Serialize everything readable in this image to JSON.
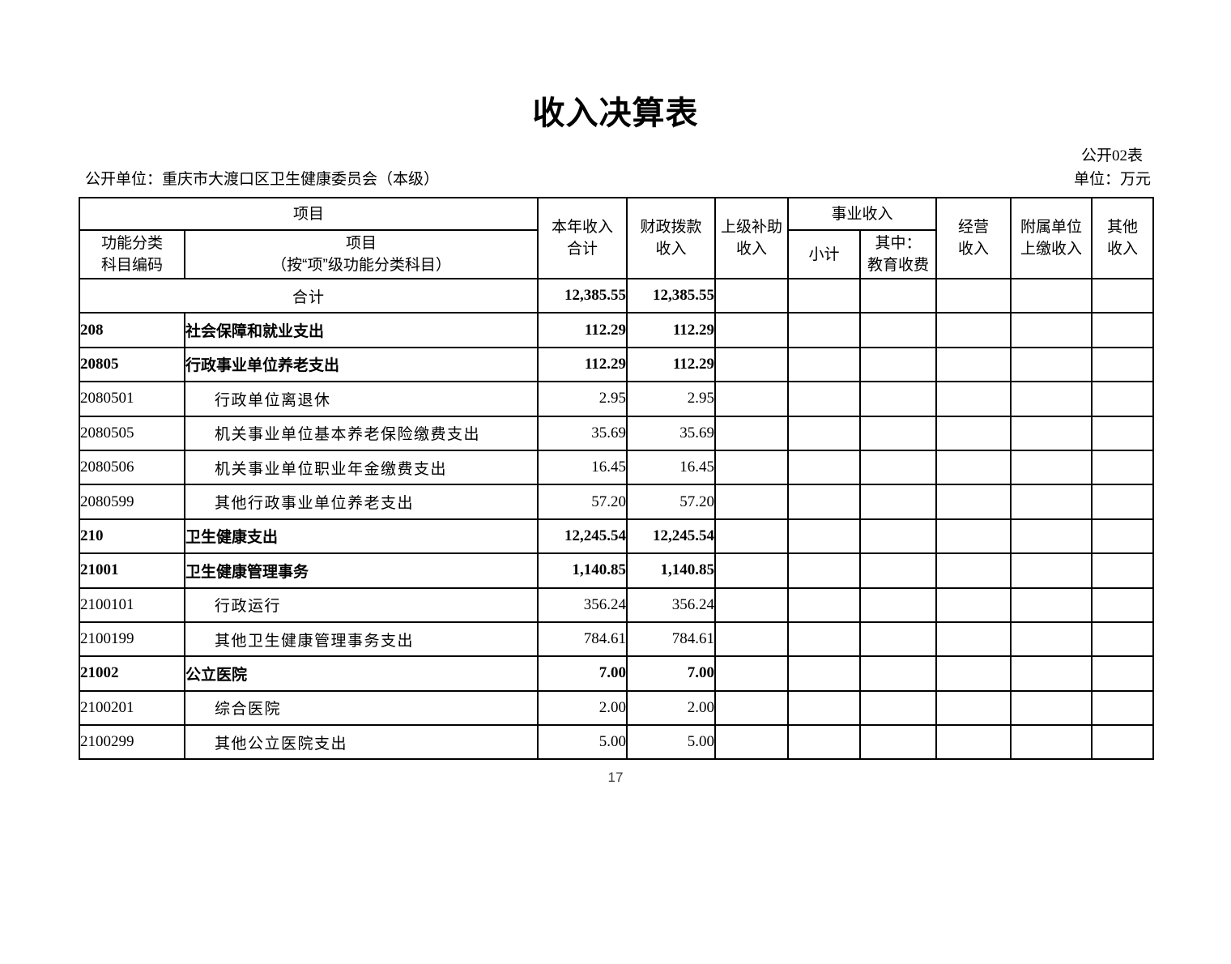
{
  "page": {
    "title": "收入决算表",
    "form_code": "公开02表",
    "publisher": "公开单位：重庆市大渡口区卫生健康委员会（本级）",
    "unit": "单位：万元",
    "page_number": "17"
  },
  "table": {
    "header": {
      "item_group": "项目",
      "code_label": [
        "功能分类",
        "科目编码"
      ],
      "item_label": [
        "项目",
        "（按“项”级功能分类科目）"
      ],
      "total_label": [
        "本年收入",
        "合计"
      ],
      "fiscal_label": [
        "财政拨款",
        "收入"
      ],
      "superior_label": [
        "上级补助",
        "收入"
      ],
      "business_group": "事业收入",
      "business_subtotal": "小计",
      "business_edu": [
        "其中：",
        "教育收费"
      ],
      "operating_label": [
        "经营",
        "收入"
      ],
      "affiliated_label": [
        "附属单位",
        "上缴收入"
      ],
      "other_label": [
        "其他",
        "收入"
      ]
    },
    "rows": [
      {
        "code": "",
        "item": "合计",
        "level": "total",
        "values": [
          "12,385.55",
          "12,385.55",
          "",
          "",
          "",
          "",
          "",
          ""
        ]
      },
      {
        "code": "208",
        "item": "社会保障和就业支出",
        "level": "class",
        "values": [
          "112.29",
          "112.29",
          "",
          "",
          "",
          "",
          "",
          ""
        ]
      },
      {
        "code": "20805",
        "item": "行政事业单位养老支出",
        "level": "class",
        "values": [
          "112.29",
          "112.29",
          "",
          "",
          "",
          "",
          "",
          ""
        ]
      },
      {
        "code": "2080501",
        "item": "行政单位离退休",
        "level": "detail",
        "values": [
          "2.95",
          "2.95",
          "",
          "",
          "",
          "",
          "",
          ""
        ]
      },
      {
        "code": "2080505",
        "item": "机关事业单位基本养老保险缴费支出",
        "level": "detail",
        "values": [
          "35.69",
          "35.69",
          "",
          "",
          "",
          "",
          "",
          ""
        ]
      },
      {
        "code": "2080506",
        "item": "机关事业单位职业年金缴费支出",
        "level": "detail",
        "values": [
          "16.45",
          "16.45",
          "",
          "",
          "",
          "",
          "",
          ""
        ]
      },
      {
        "code": "2080599",
        "item": "其他行政事业单位养老支出",
        "level": "detail",
        "values": [
          "57.20",
          "57.20",
          "",
          "",
          "",
          "",
          "",
          ""
        ]
      },
      {
        "code": "210",
        "item": "卫生健康支出",
        "level": "class",
        "values": [
          "12,245.54",
          "12,245.54",
          "",
          "",
          "",
          "",
          "",
          ""
        ]
      },
      {
        "code": "21001",
        "item": "卫生健康管理事务",
        "level": "class",
        "values": [
          "1,140.85",
          "1,140.85",
          "",
          "",
          "",
          "",
          "",
          ""
        ]
      },
      {
        "code": "2100101",
        "item": "行政运行",
        "level": "detail",
        "values": [
          "356.24",
          "356.24",
          "",
          "",
          "",
          "",
          "",
          ""
        ]
      },
      {
        "code": "2100199",
        "item": "其他卫生健康管理事务支出",
        "level": "detail",
        "values": [
          "784.61",
          "784.61",
          "",
          "",
          "",
          "",
          "",
          ""
        ]
      },
      {
        "code": "21002",
        "item": "公立医院",
        "level": "class",
        "values": [
          "7.00",
          "7.00",
          "",
          "",
          "",
          "",
          "",
          ""
        ]
      },
      {
        "code": "2100201",
        "item": "综合医院",
        "level": "detail",
        "values": [
          "2.00",
          "2.00",
          "",
          "",
          "",
          "",
          "",
          ""
        ]
      },
      {
        "code": "2100299",
        "item": "其他公立医院支出",
        "level": "detail",
        "values": [
          "5.00",
          "5.00",
          "",
          "",
          "",
          "",
          "",
          ""
        ]
      }
    ]
  }
}
